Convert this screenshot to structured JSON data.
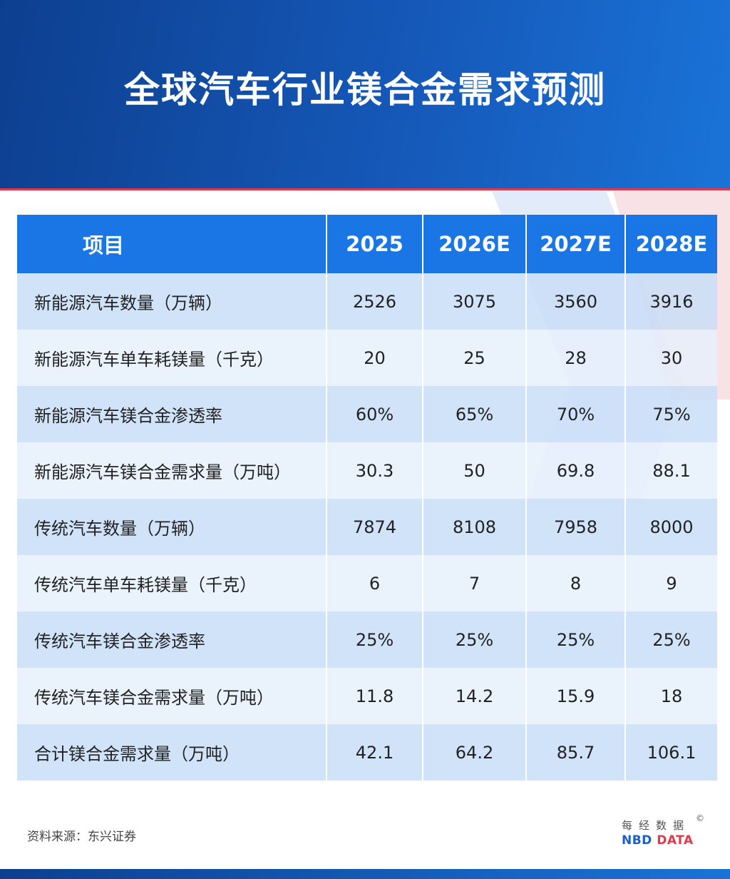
{
  "title": "全球汽车行业镁合金需求预测",
  "table": {
    "headers": [
      "项目",
      "2025",
      "2026E",
      "2027E",
      "2028E"
    ],
    "rows": [
      {
        "label": "新能源汽车数量（万辆）",
        "values": [
          "2526",
          "3075",
          "3560",
          "3916"
        ]
      },
      {
        "label": "新能源汽车单车耗镁量（千克）",
        "values": [
          "20",
          "25",
          "28",
          "30"
        ]
      },
      {
        "label": "新能源汽车镁合金渗透率",
        "values": [
          "60%",
          "65%",
          "70%",
          "75%"
        ]
      },
      {
        "label": "新能源汽车镁合金需求量（万吨）",
        "values": [
          "30.3",
          "50",
          "69.8",
          "88.1"
        ]
      },
      {
        "label": "传统汽车数量（万辆）",
        "values": [
          "7874",
          "8108",
          "7958",
          "8000"
        ]
      },
      {
        "label": "传统汽车单车耗镁量（千克）",
        "values": [
          "6",
          "7",
          "8",
          "9"
        ]
      },
      {
        "label": "传统汽车镁合金渗透率",
        "values": [
          "25%",
          "25%",
          "25%",
          "25%"
        ]
      },
      {
        "label": "传统汽车镁合金需求量（万吨）",
        "values": [
          "11.8",
          "14.2",
          "15.9",
          "18"
        ]
      },
      {
        "label": "合计镁合金需求量（万吨）",
        "values": [
          "42.1",
          "64.2",
          "85.7",
          "106.1"
        ]
      }
    ]
  },
  "source": "资料来源：东兴证券",
  "logo": {
    "cn": "每经数据",
    "copyright": "©",
    "en_blue": "NBD",
    "en_red": "DATA"
  },
  "colors": {
    "header_bg": "#0d3f8f",
    "table_header": "#1a76e4",
    "row_dark": "#c9def7",
    "row_light": "#e6f0fc",
    "accent_red": "#e03a4c"
  }
}
